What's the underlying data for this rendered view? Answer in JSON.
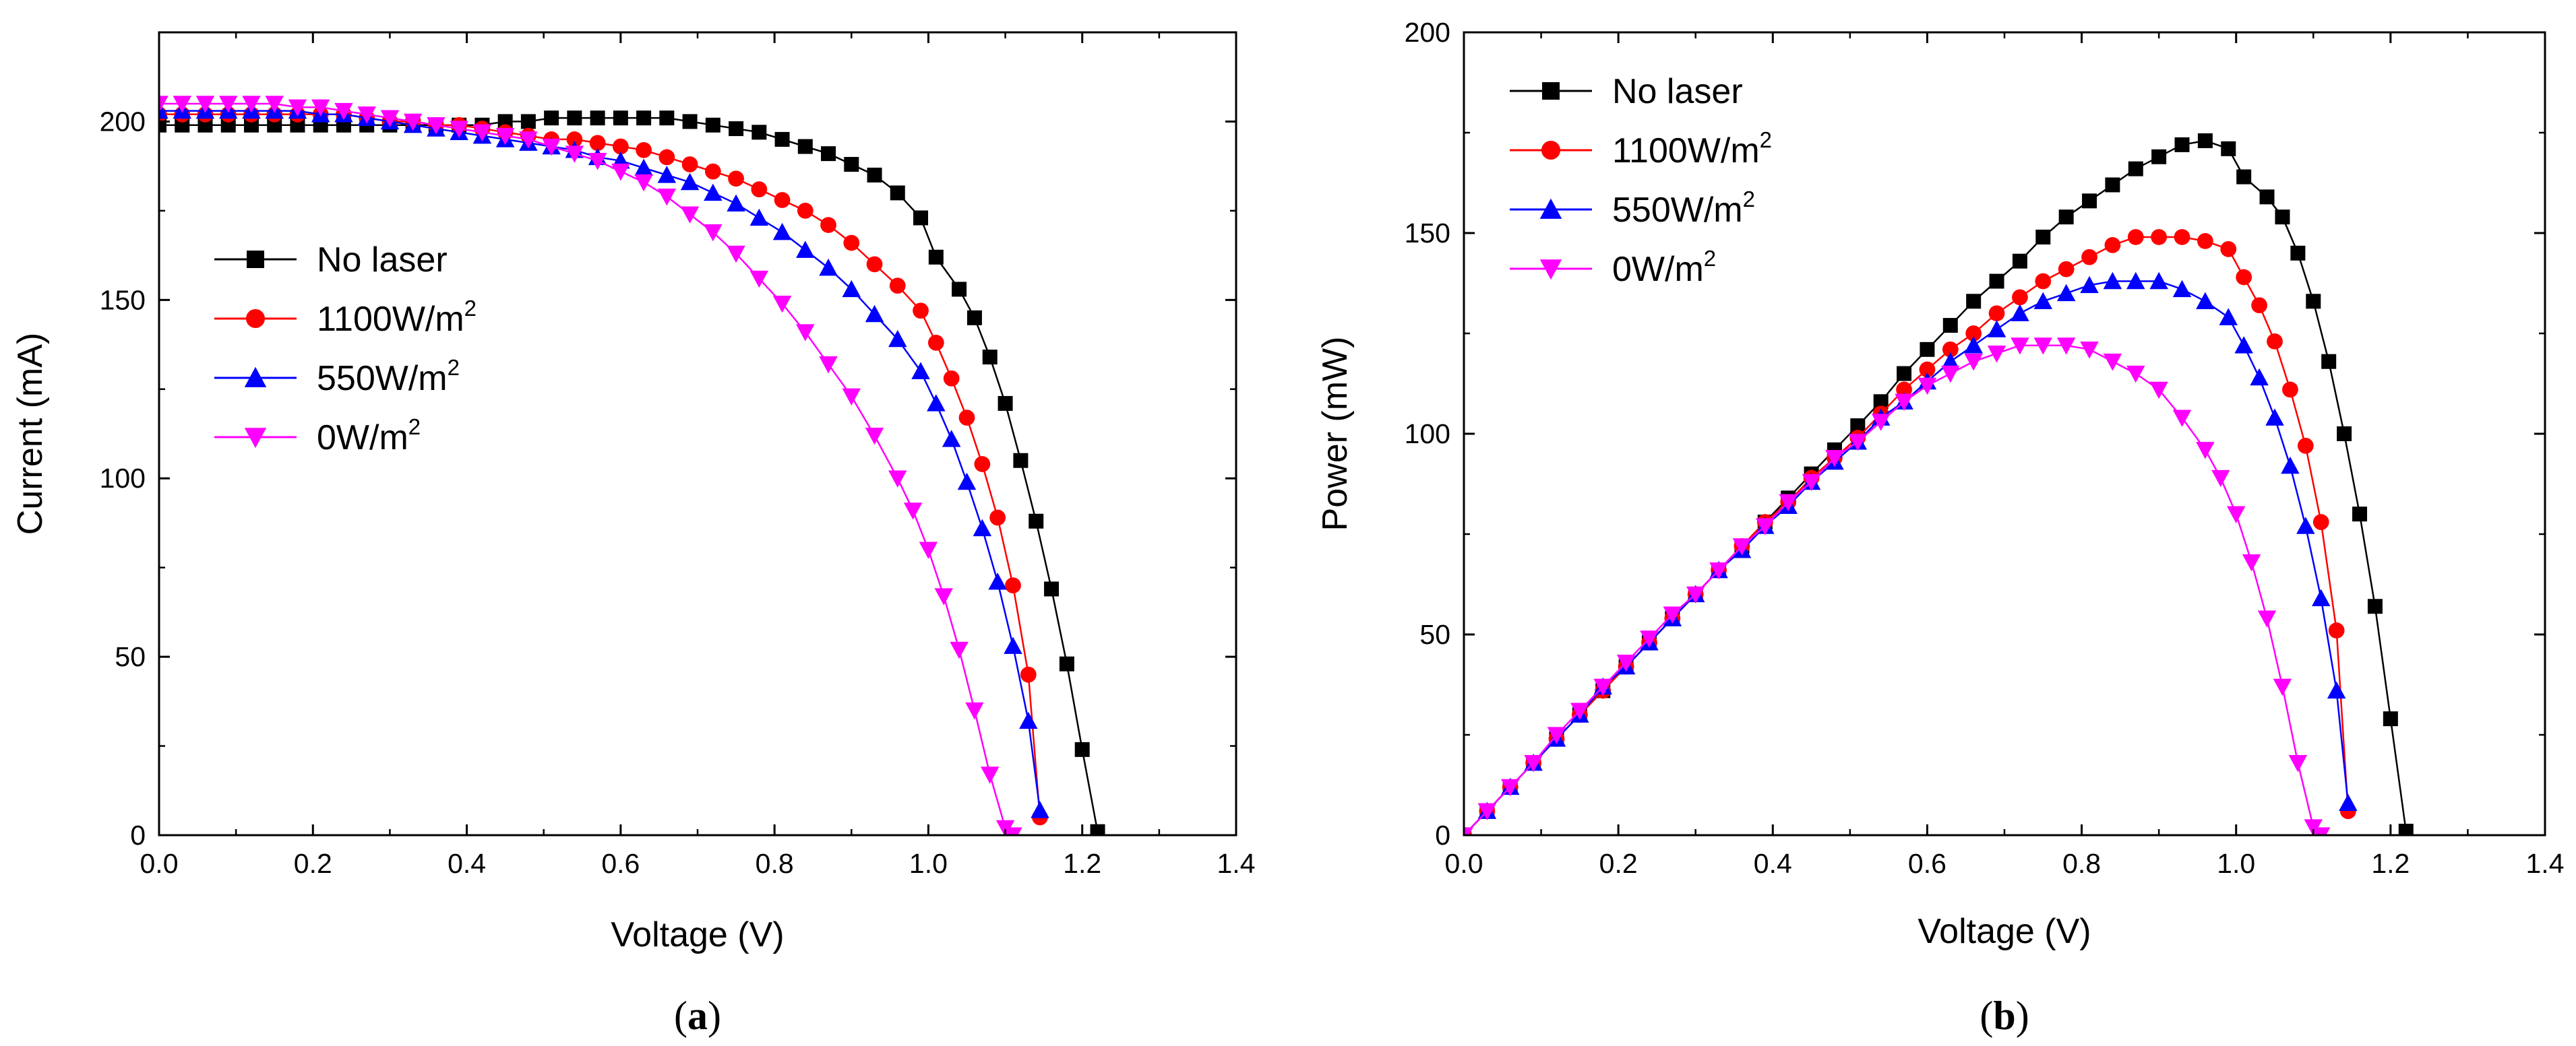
{
  "chart_data": [
    {
      "type": "line",
      "panel_label": "a",
      "title": "",
      "xlabel": "Voltage (V)",
      "ylabel": "Current (mA)",
      "xlim": [
        0,
        1.4
      ],
      "ylim": [
        0,
        225
      ],
      "xticks": [
        0.0,
        0.2,
        0.4,
        0.6,
        0.8,
        1.0,
        1.2,
        1.4
      ],
      "yticks": [
        0,
        50,
        100,
        150,
        200
      ],
      "legend_position": "center-left",
      "series": [
        {
          "name": "No laser",
          "unit_base": "",
          "unit_sup": "",
          "color": "#000000",
          "marker": "square",
          "x": [
            0.0,
            0.03,
            0.06,
            0.09,
            0.12,
            0.15,
            0.18,
            0.21,
            0.24,
            0.27,
            0.3,
            0.33,
            0.36,
            0.39,
            0.42,
            0.45,
            0.48,
            0.51,
            0.54,
            0.57,
            0.6,
            0.63,
            0.66,
            0.69,
            0.72,
            0.75,
            0.78,
            0.81,
            0.84,
            0.87,
            0.9,
            0.93,
            0.96,
            0.99,
            1.01,
            1.04,
            1.06,
            1.08,
            1.1,
            1.12,
            1.14,
            1.16,
            1.18,
            1.2,
            1.22
          ],
          "y": [
            199,
            199,
            199,
            199,
            199,
            199,
            199,
            199,
            199,
            199,
            199,
            199,
            199,
            199,
            199,
            200,
            200,
            201,
            201,
            201,
            201,
            201,
            201,
            200,
            199,
            198,
            197,
            195,
            193,
            191,
            188,
            185,
            180,
            173,
            162,
            153,
            145,
            134,
            121,
            105,
            88,
            69,
            48,
            24,
            1
          ]
        },
        {
          "name": "1100W/m",
          "unit_base": "1100W/m",
          "unit_sup": "2",
          "color": "#ff0000",
          "marker": "circle",
          "x": [
            0.0,
            0.03,
            0.06,
            0.09,
            0.12,
            0.15,
            0.18,
            0.21,
            0.24,
            0.27,
            0.3,
            0.33,
            0.36,
            0.39,
            0.42,
            0.45,
            0.48,
            0.51,
            0.54,
            0.57,
            0.6,
            0.63,
            0.66,
            0.69,
            0.72,
            0.75,
            0.78,
            0.81,
            0.84,
            0.87,
            0.9,
            0.93,
            0.96,
            0.99,
            1.01,
            1.03,
            1.05,
            1.07,
            1.09,
            1.11,
            1.13,
            1.145
          ],
          "y": [
            202,
            202,
            202,
            202,
            202,
            202,
            202,
            202,
            202,
            201,
            200,
            200,
            199,
            199,
            198,
            197,
            196,
            195,
            195,
            194,
            193,
            192,
            190,
            188,
            186,
            184,
            181,
            178,
            175,
            171,
            166,
            160,
            154,
            147,
            138,
            128,
            117,
            104,
            89,
            70,
            45,
            5
          ]
        },
        {
          "name": "550W/m",
          "unit_base": "550W/m",
          "unit_sup": "2",
          "color": "#0000ff",
          "marker": "triangle-up",
          "x": [
            0.0,
            0.03,
            0.06,
            0.09,
            0.12,
            0.15,
            0.18,
            0.21,
            0.24,
            0.27,
            0.3,
            0.33,
            0.36,
            0.39,
            0.42,
            0.45,
            0.48,
            0.51,
            0.54,
            0.57,
            0.6,
            0.63,
            0.66,
            0.69,
            0.72,
            0.75,
            0.78,
            0.81,
            0.84,
            0.87,
            0.9,
            0.93,
            0.96,
            0.99,
            1.01,
            1.03,
            1.05,
            1.07,
            1.09,
            1.11,
            1.13,
            1.145
          ],
          "y": [
            203,
            203,
            203,
            203,
            203,
            203,
            203,
            202,
            202,
            201,
            200,
            199,
            198,
            197,
            196,
            195,
            194,
            193,
            192,
            190,
            189,
            187,
            185,
            183,
            180,
            177,
            173,
            169,
            164,
            159,
            153,
            146,
            139,
            130,
            121,
            111,
            99,
            86,
            71,
            53,
            32,
            7
          ]
        },
        {
          "name": "0W/m",
          "unit_base": "0W/m",
          "unit_sup": "2",
          "color": "#ff00ff",
          "marker": "triangle-down",
          "x": [
            0.0,
            0.03,
            0.06,
            0.09,
            0.12,
            0.15,
            0.18,
            0.21,
            0.24,
            0.27,
            0.3,
            0.33,
            0.36,
            0.39,
            0.42,
            0.45,
            0.48,
            0.51,
            0.54,
            0.57,
            0.6,
            0.63,
            0.66,
            0.69,
            0.72,
            0.75,
            0.78,
            0.81,
            0.84,
            0.87,
            0.9,
            0.93,
            0.96,
            0.98,
            1.0,
            1.02,
            1.04,
            1.06,
            1.08,
            1.1,
            1.11
          ],
          "y": [
            205,
            205,
            205,
            205,
            205,
            205,
            204,
            204,
            203,
            202,
            201,
            200,
            199,
            198,
            197,
            196,
            195,
            193,
            191,
            189,
            186,
            183,
            179,
            174,
            169,
            163,
            156,
            149,
            141,
            132,
            123,
            112,
            100,
            91,
            80,
            67,
            52,
            35,
            17,
            2,
            0
          ]
        }
      ]
    },
    {
      "type": "line",
      "panel_label": "b",
      "title": "",
      "xlabel": "Voltage (V)",
      "ylabel": "Power (mW)",
      "xlim": [
        0,
        1.4
      ],
      "ylim": [
        0,
        200
      ],
      "xticks": [
        0.0,
        0.2,
        0.4,
        0.6,
        0.8,
        1.0,
        1.2,
        1.4
      ],
      "yticks": [
        0,
        50,
        100,
        150,
        200
      ],
      "legend_position": "top-left",
      "series": [
        {
          "name": "No laser",
          "unit_base": "",
          "unit_sup": "",
          "color": "#000000",
          "marker": "square",
          "x": [
            0.0,
            0.03,
            0.06,
            0.09,
            0.12,
            0.15,
            0.18,
            0.21,
            0.24,
            0.27,
            0.3,
            0.33,
            0.36,
            0.39,
            0.42,
            0.45,
            0.48,
            0.51,
            0.54,
            0.57,
            0.6,
            0.63,
            0.66,
            0.69,
            0.72,
            0.75,
            0.78,
            0.81,
            0.84,
            0.87,
            0.9,
            0.93,
            0.96,
            0.99,
            1.01,
            1.04,
            1.06,
            1.08,
            1.1,
            1.12,
            1.14,
            1.16,
            1.18,
            1.2,
            1.22
          ],
          "y": [
            0,
            6,
            12,
            18,
            24,
            30,
            36,
            42,
            48,
            54,
            60,
            66,
            72,
            78,
            84,
            90,
            96,
            102,
            108,
            115,
            121,
            127,
            133,
            138,
            143,
            149,
            154,
            158,
            162,
            166,
            169,
            172,
            173,
            171,
            164,
            159,
            154,
            145,
            133,
            118,
            100,
            80,
            57,
            29,
            1
          ]
        },
        {
          "name": "1100W/m",
          "unit_base": "1100W/m",
          "unit_sup": "2",
          "color": "#ff0000",
          "marker": "circle",
          "x": [
            0.0,
            0.03,
            0.06,
            0.09,
            0.12,
            0.15,
            0.18,
            0.21,
            0.24,
            0.27,
            0.3,
            0.33,
            0.36,
            0.39,
            0.42,
            0.45,
            0.48,
            0.51,
            0.54,
            0.57,
            0.6,
            0.63,
            0.66,
            0.69,
            0.72,
            0.75,
            0.78,
            0.81,
            0.84,
            0.87,
            0.9,
            0.93,
            0.96,
            0.99,
            1.01,
            1.03,
            1.05,
            1.07,
            1.09,
            1.11,
            1.13,
            1.145
          ],
          "y": [
            0,
            6,
            12,
            18,
            24,
            30,
            36,
            42,
            48,
            54,
            60,
            66,
            72,
            78,
            83,
            89,
            94,
            99,
            105,
            111,
            116,
            121,
            125,
            130,
            134,
            138,
            141,
            144,
            147,
            149,
            149,
            149,
            148,
            146,
            139,
            132,
            123,
            111,
            97,
            78,
            51,
            6
          ]
        },
        {
          "name": "550W/m",
          "unit_base": "550W/m",
          "unit_sup": "2",
          "color": "#0000ff",
          "marker": "triangle-up",
          "x": [
            0.0,
            0.03,
            0.06,
            0.09,
            0.12,
            0.15,
            0.18,
            0.21,
            0.24,
            0.27,
            0.3,
            0.33,
            0.36,
            0.39,
            0.42,
            0.45,
            0.48,
            0.51,
            0.54,
            0.57,
            0.6,
            0.63,
            0.66,
            0.69,
            0.72,
            0.75,
            0.78,
            0.81,
            0.84,
            0.87,
            0.9,
            0.93,
            0.96,
            0.99,
            1.01,
            1.03,
            1.05,
            1.07,
            1.09,
            1.11,
            1.13,
            1.145
          ],
          "y": [
            0,
            6,
            12,
            18,
            24,
            30,
            37,
            42,
            48,
            54,
            60,
            66,
            71,
            77,
            82,
            88,
            93,
            98,
            104,
            108,
            113,
            118,
            122,
            126,
            130,
            133,
            135,
            137,
            138,
            138,
            138,
            136,
            133,
            129,
            122,
            114,
            104,
            92,
            77,
            59,
            36,
            8
          ]
        },
        {
          "name": "0W/m",
          "unit_base": "0W/m",
          "unit_sup": "2",
          "color": "#ff00ff",
          "marker": "triangle-down",
          "x": [
            0.0,
            0.03,
            0.06,
            0.09,
            0.12,
            0.15,
            0.18,
            0.21,
            0.24,
            0.27,
            0.3,
            0.33,
            0.36,
            0.39,
            0.42,
            0.45,
            0.48,
            0.51,
            0.54,
            0.57,
            0.6,
            0.63,
            0.66,
            0.69,
            0.72,
            0.75,
            0.78,
            0.81,
            0.84,
            0.87,
            0.9,
            0.93,
            0.96,
            0.98,
            1.0,
            1.02,
            1.04,
            1.06,
            1.08,
            1.1,
            1.11
          ],
          "y": [
            0,
            6,
            12,
            18,
            25,
            31,
            37,
            43,
            49,
            55,
            60,
            66,
            72,
            77,
            83,
            88,
            94,
            98,
            103,
            108,
            112,
            115,
            118,
            120,
            122,
            122,
            122,
            121,
            118,
            115,
            111,
            104,
            96,
            89,
            80,
            68,
            54,
            37,
            18,
            2,
            0
          ]
        }
      ]
    }
  ]
}
